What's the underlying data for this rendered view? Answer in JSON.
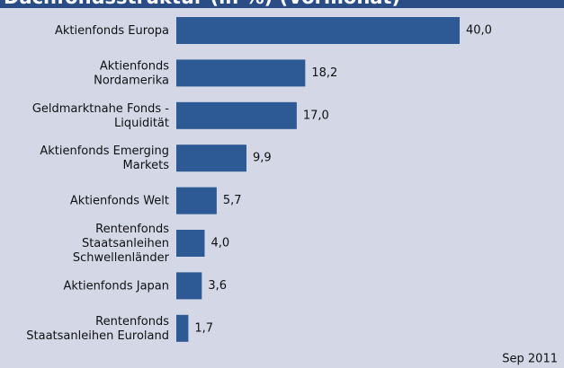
{
  "chart_data": {
    "type": "bar",
    "orientation": "horizontal",
    "title": "Dachfondsstruktur (in %) (Vormonat)",
    "categories": [
      "Aktienfonds Europa",
      "Aktienfonds\nNordamerika",
      "Geldmarktnahe Fonds -\nLiquidität",
      "Aktienfonds Emerging\nMarkets",
      "Aktienfonds Welt",
      "Rentenfonds\nStaatsanleihen\nSchwellenländer",
      "Aktienfonds Japan",
      "Rentenfonds\nStaatsanleihen Euroland"
    ],
    "values": [
      40.0,
      18.2,
      17.0,
      9.9,
      5.7,
      4.0,
      3.6,
      1.7
    ],
    "value_labels": [
      "40,0",
      "18,2",
      "17,0",
      "9,9",
      "5,7",
      "4,0",
      "3,6",
      "1,7"
    ],
    "color": "#2d5a94",
    "footnote": "Sep 2011"
  }
}
